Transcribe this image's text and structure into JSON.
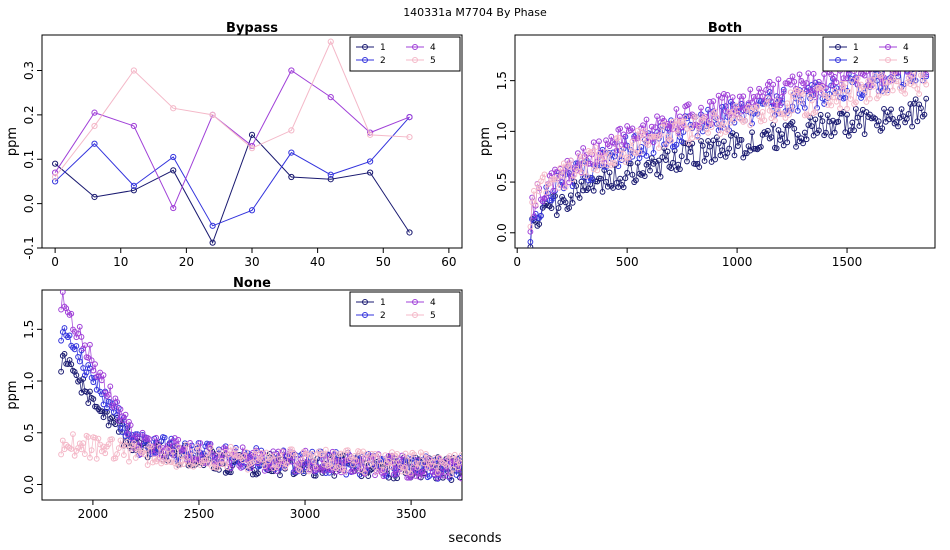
{
  "figure": {
    "title": "140331a    M7704   By Phase",
    "xlabel": "seconds"
  },
  "colors": {
    "1": "#191970",
    "2": "#3333dd",
    "4": "#a040d8",
    "5": "#f4b8c8"
  },
  "chart_data": [
    {
      "type": "scatter",
      "title": "Bypass",
      "ylabel": "ppm",
      "xlim": [
        -2,
        62
      ],
      "ylim": [
        -0.1,
        0.38
      ],
      "xticks": [
        "0",
        "10",
        "20",
        "30",
        "40",
        "50",
        "60"
      ],
      "yticks": [
        "-0.1",
        "0.0",
        "0.1",
        "0.2",
        "0.3"
      ],
      "legend": {
        "placement": "top-right",
        "entries": [
          "1",
          "2",
          "4",
          "5"
        ]
      },
      "series": [
        {
          "name": "1",
          "x": [
            0,
            6,
            12,
            18,
            24,
            30,
            36,
            42,
            48,
            54
          ],
          "y": [
            0.09,
            0.015,
            0.03,
            0.075,
            -0.088,
            0.155,
            0.06,
            0.055,
            0.07,
            -0.065
          ]
        },
        {
          "name": "2",
          "x": [
            0,
            6,
            12,
            18,
            24,
            30,
            36,
            42,
            48,
            54
          ],
          "y": [
            0.05,
            0.135,
            0.04,
            0.105,
            -0.05,
            -0.015,
            0.115,
            0.065,
            0.095,
            0.195
          ]
        },
        {
          "name": "4",
          "x": [
            0,
            6,
            12,
            18,
            24,
            30,
            36,
            42,
            48,
            54
          ],
          "y": [
            0.07,
            0.205,
            0.175,
            -0.01,
            0.2,
            0.13,
            0.3,
            0.24,
            0.16,
            0.195
          ]
        },
        {
          "name": "5",
          "x": [
            0,
            6,
            12,
            18,
            24,
            30,
            36,
            42,
            48,
            54
          ],
          "y": [
            0.06,
            0.175,
            0.3,
            0.215,
            0.2,
            0.125,
            0.165,
            0.365,
            0.155,
            0.15
          ]
        }
      ]
    },
    {
      "type": "scatter",
      "title": "Both",
      "ylabel": "ppm",
      "xlim": [
        -10,
        1900
      ],
      "ylim": [
        -0.15,
        1.95
      ],
      "xticks": [
        "0",
        "500",
        "1000",
        "1500"
      ],
      "yticks": [
        "0.0",
        "0.5",
        "1.0",
        "1.5"
      ],
      "legend": {
        "placement": "top-right",
        "entries": [
          "1",
          "2",
          "4",
          "5"
        ]
      },
      "series": [
        {
          "name": "1",
          "x": [
            60,
            1860
          ],
          "y": [
            0.0,
            1.2
          ]
        },
        {
          "name": "2",
          "x": [
            60,
            1860
          ],
          "y": [
            0.05,
            1.6
          ]
        },
        {
          "name": "4",
          "x": [
            60,
            1860
          ],
          "y": [
            0.15,
            1.7
          ]
        },
        {
          "name": "5",
          "x": [
            60,
            1860
          ],
          "y": [
            0.2,
            1.5
          ]
        }
      ]
    },
    {
      "type": "scatter",
      "title": "None",
      "ylabel": "ppm",
      "xlim": [
        1760,
        3740
      ],
      "ylim": [
        -0.15,
        1.88
      ],
      "xticks": [
        "2000",
        "2500",
        "3000",
        "3500"
      ],
      "yticks": [
        "0.0",
        "0.5",
        "1.0",
        "1.5"
      ],
      "legend": {
        "placement": "top-right",
        "entries": [
          "1",
          "2",
          "4",
          "5"
        ]
      },
      "series": [
        {
          "name": "1",
          "x": [
            1850,
            2200,
            2700,
            3740
          ],
          "y": [
            1.2,
            0.35,
            0.2,
            0.15
          ]
        },
        {
          "name": "2",
          "x": [
            1850,
            2200,
            2700,
            3740
          ],
          "y": [
            1.5,
            0.4,
            0.25,
            0.15
          ]
        },
        {
          "name": "4",
          "x": [
            1850,
            2200,
            2700,
            3740
          ],
          "y": [
            1.8,
            0.4,
            0.25,
            0.15
          ]
        },
        {
          "name": "5",
          "x": [
            1850,
            2200,
            2700,
            3740
          ],
          "y": [
            0.4,
            0.3,
            0.25,
            0.2
          ]
        }
      ]
    }
  ]
}
